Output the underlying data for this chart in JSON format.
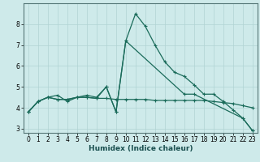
{
  "xlabel": "Humidex (Indice chaleur)",
  "ylabel": "",
  "bg_color": "#ceeaea",
  "grid_color": "#b0d4d4",
  "line_color": "#1a6b5a",
  "xlim": [
    -0.5,
    23.5
  ],
  "ylim": [
    2.8,
    9.0
  ],
  "yticks": [
    3,
    4,
    5,
    6,
    7,
    8
  ],
  "xticks": [
    0,
    1,
    2,
    3,
    4,
    5,
    6,
    7,
    8,
    9,
    10,
    11,
    12,
    13,
    14,
    15,
    16,
    17,
    18,
    19,
    20,
    21,
    22,
    23
  ],
  "series1_x": [
    0,
    1,
    2,
    3,
    4,
    5,
    6,
    7,
    8,
    9,
    10,
    11,
    12,
    13,
    14,
    15,
    16,
    17,
    18,
    19,
    20,
    21,
    22,
    23
  ],
  "series1_y": [
    3.8,
    4.3,
    4.5,
    4.6,
    4.3,
    4.5,
    4.6,
    4.5,
    5.0,
    3.8,
    7.2,
    8.5,
    7.9,
    7.0,
    6.2,
    5.7,
    5.5,
    5.1,
    4.65,
    4.65,
    4.3,
    3.9,
    3.5,
    2.9
  ],
  "series2_x": [
    0,
    1,
    2,
    3,
    4,
    5,
    6,
    7,
    8,
    9,
    10,
    11,
    12,
    13,
    14,
    15,
    16,
    17,
    18,
    19,
    20,
    21,
    22,
    23
  ],
  "series2_y": [
    3.8,
    4.3,
    4.5,
    4.4,
    4.4,
    4.5,
    4.5,
    4.45,
    4.45,
    4.4,
    4.4,
    4.4,
    4.4,
    4.35,
    4.35,
    4.35,
    4.35,
    4.35,
    4.35,
    4.3,
    4.25,
    4.2,
    4.1,
    4.0
  ],
  "series3_x": [
    0,
    1,
    2,
    3,
    4,
    5,
    6,
    7,
    8,
    9,
    10,
    16,
    17,
    22,
    23
  ],
  "series3_y": [
    3.8,
    4.3,
    4.5,
    4.4,
    4.4,
    4.5,
    4.5,
    4.45,
    5.0,
    3.8,
    7.2,
    4.65,
    4.65,
    3.5,
    2.9
  ],
  "marker": "+",
  "marker_size": 3.5,
  "linewidth": 0.9
}
